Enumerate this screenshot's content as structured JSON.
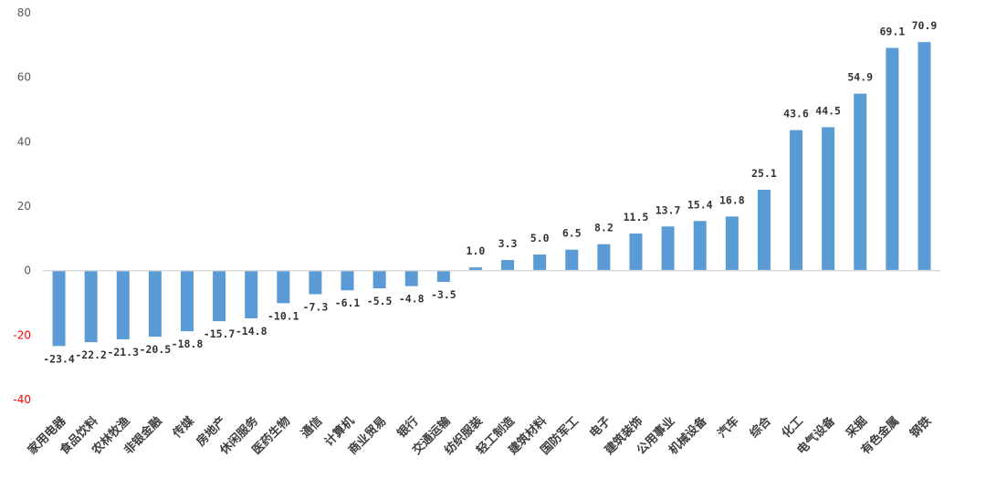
{
  "chart_data": {
    "type": "bar",
    "categories": [
      "家用电器",
      "食品饮料",
      "农林牧渔",
      "非银金融",
      "传媒",
      "房地产",
      "休闲服务",
      "医药生物",
      "通信",
      "计算机",
      "商业贸易",
      "银行",
      "交通运输",
      "纺织服装",
      "轻工制造",
      "建筑材料",
      "国防军工",
      "电子",
      "建筑装饰",
      "公用事业",
      "机械设备",
      "汽车",
      "综合",
      "化工",
      "电气设备",
      "采掘",
      "有色金属",
      "钢铁"
    ],
    "values": [
      -23.4,
      -22.2,
      -21.3,
      -20.5,
      -18.8,
      -15.7,
      -14.8,
      -10.1,
      -7.3,
      -6.1,
      -5.5,
      -4.8,
      -3.5,
      1.0,
      3.3,
      5.0,
      6.5,
      8.2,
      11.5,
      13.7,
      15.4,
      16.8,
      25.1,
      43.6,
      44.5,
      54.9,
      69.1,
      70.9
    ],
    "data_labels": [
      "-23.4",
      "-22.2",
      "-21.3",
      "-20.5",
      "-18.8",
      "-15.7",
      "-14.8",
      "-10.1",
      "-7.3",
      "-6.1",
      "-5.5",
      "-4.8",
      "-3.5",
      "1.0",
      "3.3",
      "5.0",
      "6.5",
      "8.2",
      "11.5",
      "13.7",
      "15.4",
      "16.8",
      "25.1",
      "43.6",
      "44.5",
      "54.9",
      "69.1",
      "70.9"
    ],
    "ylim": [
      -40,
      80
    ],
    "yticks": [
      -40,
      -20,
      0,
      20,
      40,
      60,
      80
    ],
    "ytick_labels": [
      "-40",
      "-20",
      "0",
      "20",
      "40",
      "60",
      "80"
    ],
    "title": "",
    "xlabel": "",
    "ylabel": "",
    "grid": false,
    "legend": "none",
    "colors": {
      "bar": "#5b9bd5",
      "positive_tick": "#595959",
      "negative_tick": "#ff0000",
      "axis": "#d9d9d9"
    }
  }
}
